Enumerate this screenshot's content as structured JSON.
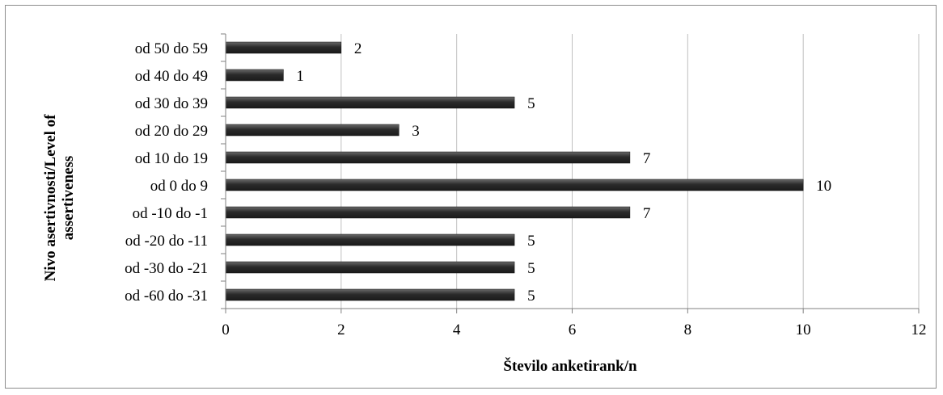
{
  "chart_data": {
    "type": "bar",
    "orientation": "horizontal",
    "categories": [
      "od -60 do -31",
      "od -30 do -21",
      "od -20 do -11",
      "od -10 do -1",
      "od 0 do 9",
      "od 10 do 19",
      "od 20 do 29",
      "od 30 do 39",
      "od 40 do 49",
      "od 50 do 59"
    ],
    "values": [
      5,
      5,
      5,
      7,
      10,
      7,
      3,
      5,
      1,
      2
    ],
    "data_labels": [
      "5",
      "5",
      "5",
      "7",
      "10",
      "7",
      "3",
      "5",
      "1",
      "2"
    ],
    "xlabel": "Število anketirank/n",
    "ylabel_lines": [
      "Nivo asertivnosti/Level of",
      "assertiveness"
    ],
    "xlim": [
      0,
      12
    ],
    "xticks": [
      0,
      2,
      4,
      6,
      8,
      10,
      12
    ],
    "xtick_labels": [
      "0",
      "2",
      "4",
      "6",
      "8",
      "10",
      "12"
    ],
    "grid": "vertical",
    "legend": "none",
    "bar_color": "#2b2b2b",
    "grid_color": "#bfbfbf"
  }
}
